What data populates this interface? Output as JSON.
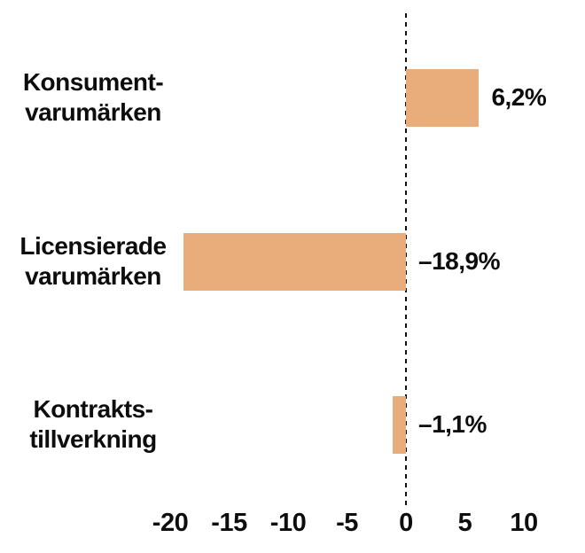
{
  "chart_data": {
    "type": "bar",
    "orientation": "horizontal",
    "title": "",
    "xlabel": "",
    "ylabel": "",
    "categories": [
      [
        "Konsument-",
        "varumärken"
      ],
      [
        "Licensierade",
        "varumärken"
      ],
      [
        "Kontrakts-",
        "tillverkning"
      ]
    ],
    "values": [
      6.2,
      -18.9,
      -1.1
    ],
    "value_labels": [
      "6,2%",
      "–18,9%",
      "–1,1%"
    ],
    "unit": "%",
    "xlim": [
      -20,
      10
    ],
    "xticks": [
      -20,
      -15,
      -10,
      -5,
      0,
      5,
      10
    ],
    "xtick_labels": [
      "-20",
      "-15",
      "-10",
      "-5",
      "0",
      "5",
      "10"
    ],
    "grid": false,
    "legend": false,
    "zero_line_style": "dashed",
    "colors": {
      "bar_fill": "#E9AC7B",
      "text": "#0d0d0d",
      "zero_line": "#111111",
      "background": "#ffffff"
    }
  }
}
